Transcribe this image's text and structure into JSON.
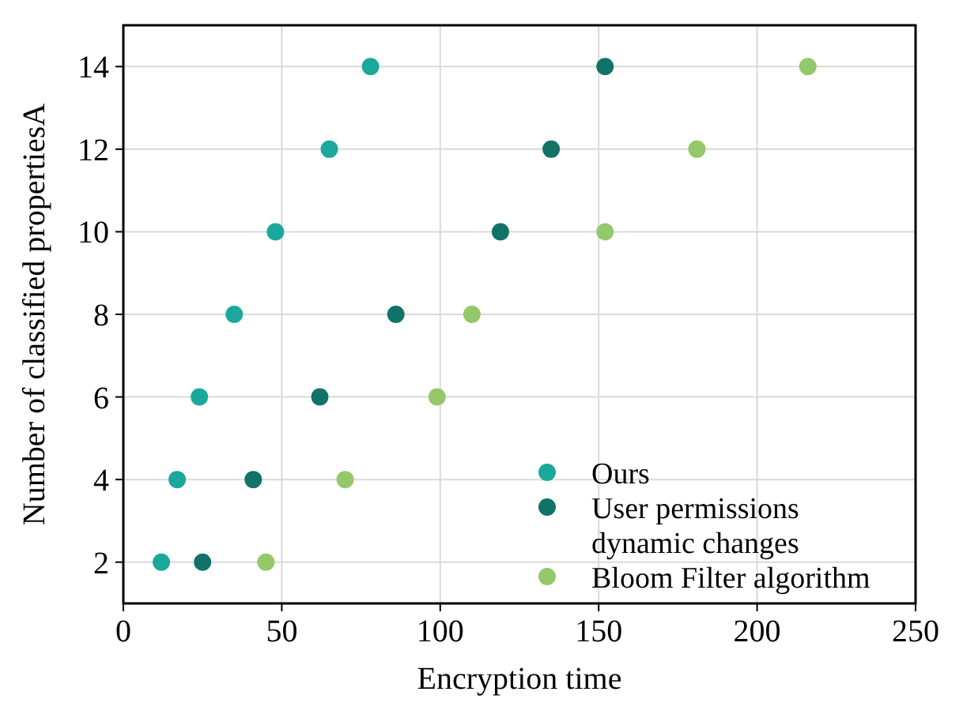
{
  "chart_data": {
    "type": "scatter",
    "xlabel": "Encryption time",
    "ylabel": "Number of classified propertiesA",
    "xlim": [
      0,
      250
    ],
    "xticks": [
      0,
      50,
      100,
      150,
      200,
      250
    ],
    "ylim": [
      1,
      15
    ],
    "yticks": [
      2,
      4,
      6,
      8,
      10,
      12,
      14
    ],
    "grid": true,
    "legend": "bottom right",
    "marker": "circle",
    "series": [
      {
        "name": "Ours",
        "color": "#1aa89c",
        "x": [
          12,
          17,
          24,
          35,
          48,
          65,
          78
        ],
        "values": [
          2,
          4,
          6,
          8,
          10,
          12,
          14
        ]
      },
      {
        "name": "User permissions dynamic changes",
        "color": "#117368",
        "x": [
          25,
          41,
          62,
          86,
          119,
          135,
          152
        ],
        "values": [
          2,
          4,
          6,
          8,
          10,
          12,
          14
        ]
      },
      {
        "name": "Bloom Filter algorithm",
        "color": "#95c86a",
        "x": [
          45,
          70,
          99,
          110,
          152,
          181,
          216
        ],
        "values": [
          2,
          4,
          6,
          8,
          10,
          12,
          14
        ]
      }
    ]
  }
}
